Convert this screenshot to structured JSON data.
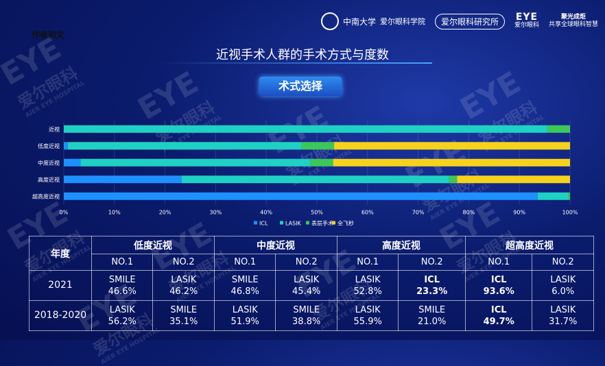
{
  "header": {
    "author": "作者和文",
    "uni_name": "中南大学",
    "school_name": "爱尔眼科学院",
    "institute": "爱尔眼科研究所",
    "eye_logo": "EYE",
    "eye_logo_sub": "爱尔眼科",
    "slogan_line1": "聚光成炬",
    "slogan_line2": "共享全球眼科智慧"
  },
  "title": "近视手术人群的手术方式与度数",
  "section_label": "术式选择",
  "chart_data": {
    "type": "bar",
    "orientation": "horizontal",
    "stacked": true,
    "normalized": true,
    "categories": [
      "近视",
      "低度近视",
      "中度近视",
      "高度近视",
      "超高度近视"
    ],
    "series": [
      {
        "name": "ICL",
        "color": "#1e90ff",
        "values": [
          0,
          0.8,
          3.3,
          23.3,
          93.6
        ]
      },
      {
        "name": "LASIK",
        "color": "#1fd1c4",
        "values": [
          95.5,
          46.2,
          45.4,
          52.8,
          6.0
        ]
      },
      {
        "name": "表层手术",
        "color": "#3cc75a",
        "values": [
          4.5,
          6.4,
          4.5,
          1.6,
          0.4
        ]
      },
      {
        "name": "全飞秒",
        "color": "#f6d21c",
        "values": [
          0,
          46.6,
          46.8,
          22.3,
          0
        ]
      }
    ],
    "x_ticks": [
      "0%",
      "10%",
      "20%",
      "30%",
      "40%",
      "50%",
      "60%",
      "70%",
      "80%",
      "90%",
      "100%"
    ],
    "xlim": [
      0,
      100
    ],
    "legend_position": "bottom"
  },
  "table": {
    "year_header": "年度",
    "groups": [
      "低度近视",
      "中度近视",
      "高度近视",
      "超高度近视"
    ],
    "subheaders": [
      "NO.1",
      "NO.2"
    ],
    "rows": [
      {
        "year": "2021",
        "cells": [
          [
            "SMILE",
            "46.6%"
          ],
          [
            "LASIK",
            "46.2%"
          ],
          [
            "SMILE",
            "46.8%"
          ],
          [
            "LASIK",
            "45.4%"
          ],
          [
            "LASIK",
            "52.8%"
          ],
          [
            "ICL",
            "23.3%"
          ],
          [
            "ICL",
            "93.6%"
          ],
          [
            "LASIK",
            "6.0%"
          ]
        ]
      },
      {
        "year": "2018-2020",
        "cells": [
          [
            "LASIK",
            "56.2%"
          ],
          [
            "SMILE",
            "35.1%"
          ],
          [
            "LASIK",
            "51.9%"
          ],
          [
            "SMILE",
            "38.8%"
          ],
          [
            "LASIK",
            "55.9%"
          ],
          [
            "SMILE",
            "21.0%"
          ],
          [
            "ICL",
            "49.7%"
          ],
          [
            "LASIK",
            "31.7%"
          ]
        ]
      }
    ],
    "bold_cells": [
      [
        0,
        5
      ],
      [
        0,
        6
      ],
      [
        1,
        6
      ]
    ]
  },
  "watermark": {
    "logo": "EYE",
    "text": "爱尔眼科",
    "sub": "AIER EYE HOSPITAL"
  }
}
